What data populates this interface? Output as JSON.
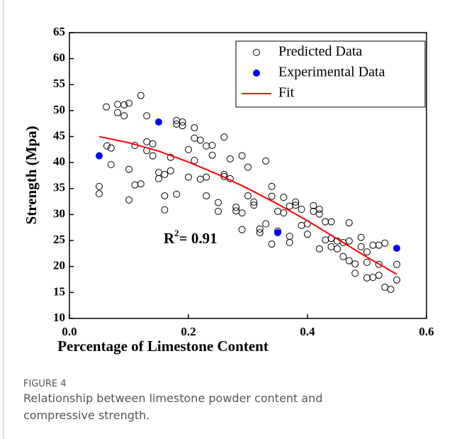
{
  "chart_data": {
    "type": "scatter",
    "xlabel": "Percentage of Limestone Content",
    "ylabel": "Strength (Mpa)",
    "xlim": [
      0,
      0.6
    ],
    "ylim": [
      10,
      65
    ],
    "xticks": [
      {
        "value": 0,
        "label": "0.0"
      },
      0.2,
      0.4,
      0.6
    ],
    "yticks": [
      10,
      15,
      20,
      25,
      30,
      35,
      40,
      45,
      50,
      55,
      60,
      65
    ],
    "legend": "upper right",
    "annotation": {
      "base": "R",
      "sup": "2",
      "rest": "= 0.91"
    },
    "series": [
      {
        "name": "Predicted Data",
        "color": "#000000",
        "marker": "open",
        "x": [
          0.05,
          0.05,
          0.062,
          0.063,
          0.07,
          0.07,
          0.081,
          0.081,
          0.092,
          0.092,
          0.1,
          0.1,
          0.1,
          0.11,
          0.11,
          0.12,
          0.12,
          0.13,
          0.13,
          0.13,
          0.14,
          0.14,
          0.15,
          0.15,
          0.16,
          0.16,
          0.16,
          0.17,
          0.17,
          0.18,
          0.18,
          0.18,
          0.19,
          0.19,
          0.2,
          0.2,
          0.21,
          0.21,
          0.21,
          0.22,
          0.22,
          0.23,
          0.23,
          0.23,
          0.24,
          0.24,
          0.25,
          0.25,
          0.26,
          0.26,
          0.26,
          0.27,
          0.27,
          0.28,
          0.28,
          0.29,
          0.29,
          0.29,
          0.3,
          0.3,
          0.31,
          0.31,
          0.32,
          0.32,
          0.33,
          0.33,
          0.34,
          0.34,
          0.34,
          0.35,
          0.35,
          0.36,
          0.36,
          0.37,
          0.37,
          0.37,
          0.38,
          0.38,
          0.39,
          0.39,
          0.4,
          0.4,
          0.41,
          0.41,
          0.42,
          0.42,
          0.42,
          0.43,
          0.43,
          0.44,
          0.44,
          0.44,
          0.45,
          0.45,
          0.46,
          0.46,
          0.47,
          0.47,
          0.47,
          0.48,
          0.48,
          0.49,
          0.49,
          0.5,
          0.5,
          0.5,
          0.51,
          0.51,
          0.52,
          0.52,
          0.52,
          0.53,
          0.53,
          0.54,
          0.55,
          0.55
        ],
        "values": [
          35.4,
          34.0,
          50.7,
          43.2,
          42.8,
          39.6,
          51.2,
          49.6,
          51.1,
          49.0,
          51.4,
          38.7,
          32.8,
          43.3,
          35.7,
          35.9,
          52.9,
          49.0,
          44.0,
          42.3,
          43.6,
          41.3,
          38.1,
          36.9,
          37.7,
          33.6,
          30.9,
          41.0,
          38.4,
          48.1,
          47.4,
          33.9,
          47.8,
          47.1,
          42.5,
          37.2,
          44.7,
          46.7,
          40.4,
          44.3,
          36.8,
          43.2,
          37.2,
          33.6,
          43.3,
          41.4,
          32.3,
          30.6,
          44.9,
          37.7,
          37.3,
          40.7,
          36.9,
          31.4,
          30.7,
          41.3,
          27.1,
          30.3,
          39.1,
          33.6,
          32.4,
          31.8,
          27.2,
          26.5,
          40.3,
          28.2,
          35.4,
          33.5,
          24.3,
          26.8,
          30.6,
          33.3,
          30.3,
          31.6,
          25.8,
          24.6,
          32.4,
          31.8,
          31.0,
          27.9,
          28.2,
          26.2,
          31.7,
          30.6,
          31.0,
          30.1,
          23.4,
          28.6,
          25.1,
          28.6,
          25.4,
          23.8,
          24.9,
          23.4,
          21.9,
          24.6,
          28.4,
          24.9,
          21.1,
          20.5,
          18.7,
          25.6,
          23.8,
          22.8,
          20.8,
          17.8,
          24.1,
          17.9,
          24.1,
          20.4,
          18.3,
          24.5,
          16.0,
          15.6,
          20.4,
          17.4
        ]
      },
      {
        "name": "Experimental Data",
        "color": "#0000ff",
        "marker": "filled",
        "x": [
          0.05,
          0.15,
          0.35,
          0.55
        ],
        "values": [
          41.3,
          47.8,
          26.5,
          23.5
        ]
      },
      {
        "name": "Fit",
        "color": "#ff0000",
        "marker": "line",
        "x": [
          0.05,
          0.1,
          0.15,
          0.2,
          0.25,
          0.3,
          0.35,
          0.4,
          0.45,
          0.5,
          0.55
        ],
        "values": [
          45.0,
          43.8,
          42.2,
          40.1,
          37.7,
          35.0,
          32.0,
          28.8,
          25.3,
          21.8,
          18.5
        ]
      }
    ]
  },
  "figure": {
    "label": "FIGURE 4",
    "caption": "Relationship between limestone powder content and compressive strength."
  }
}
